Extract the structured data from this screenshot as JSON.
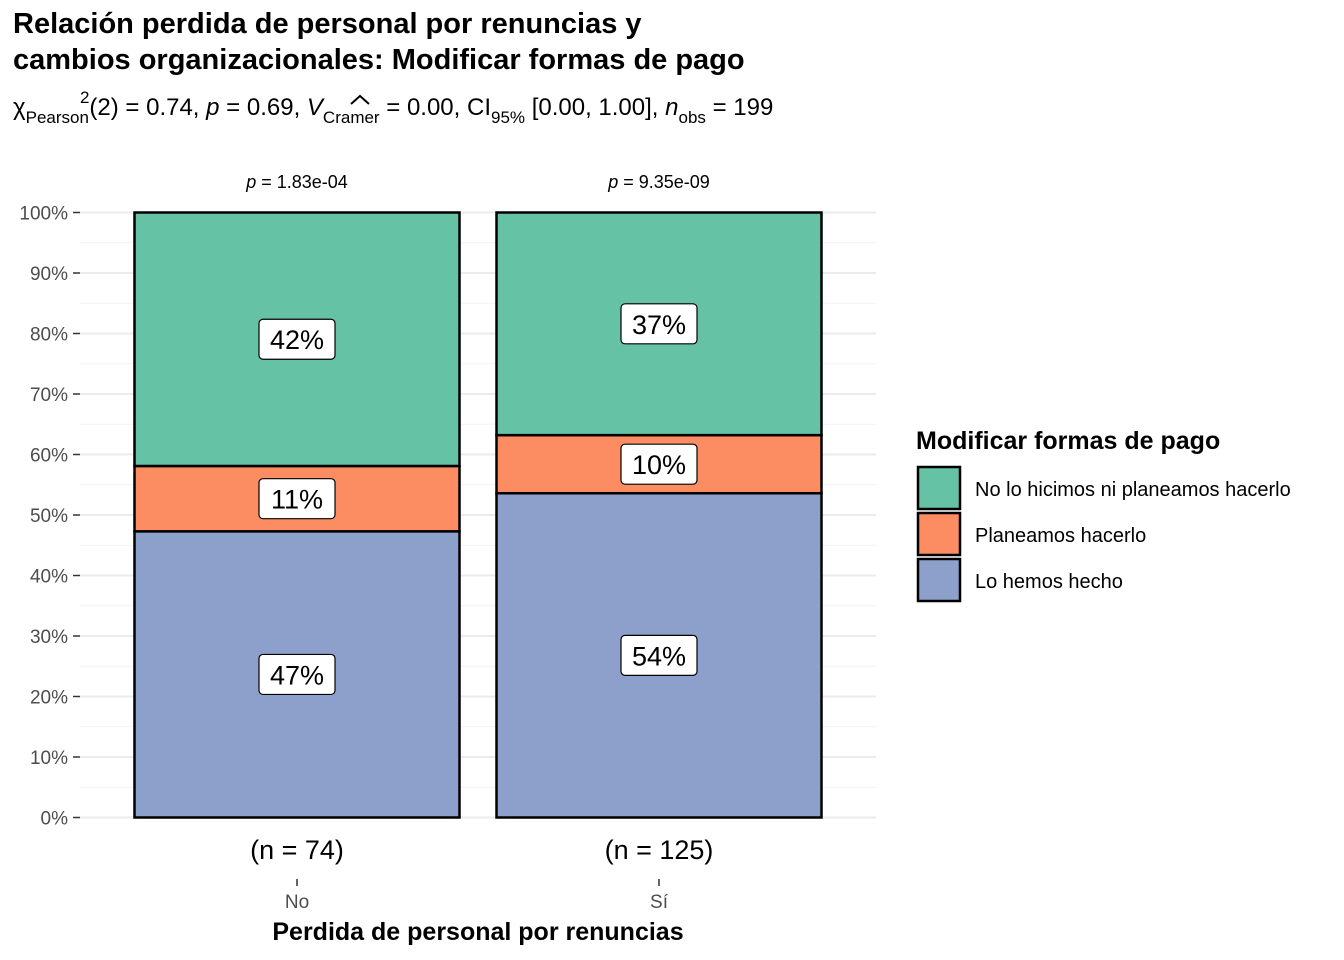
{
  "chart_data": {
    "type": "bar",
    "stacked": "percent",
    "title_line1": "Relación perdida de personal por renuncias y",
    "title_line2": "cambios organizacionales: Modificar formas de pago",
    "subtitle": {
      "chi": "χ",
      "chi_sub": "Pearson",
      "chi_sup": "2",
      "df": "(2) = 0.74, ",
      "p": "p",
      "p_val": " = 0.69, ",
      "v": "V",
      "v_sub": "Cramer",
      "v_val": " = 0.00, CI",
      "ci_sub": "95%",
      "ci_val": " [0.00, 1.00], ",
      "n": "n",
      "n_sub": "obs",
      "n_val": " = 199"
    },
    "xlabel": "Perdida de personal por renuncias",
    "ylabel": "",
    "ylim": [
      0,
      100
    ],
    "yticks": [
      "0%",
      "10%",
      "20%",
      "30%",
      "40%",
      "50%",
      "60%",
      "70%",
      "80%",
      "90%",
      "100%"
    ],
    "categories": [
      "No",
      "Sí"
    ],
    "category_counts": [
      "(n = 74)",
      "(n = 125)"
    ],
    "category_pvalues": [
      "p = 1.83e-04",
      "p = 9.35e-09"
    ],
    "legend_title": "Modificar formas de pago",
    "legend_position": "right",
    "grid": true,
    "series": [
      {
        "name": "Lo hemos hecho",
        "color": "#8DA0CB",
        "values": [
          47.3,
          53.6
        ],
        "labels": [
          "47%",
          "54%"
        ]
      },
      {
        "name": "Planeamos hacerlo",
        "color": "#FC8D62",
        "values": [
          10.8,
          9.6
        ],
        "labels": [
          "11%",
          "10%"
        ]
      },
      {
        "name": "No lo hicimos ni planeamos hacerlo",
        "color": "#66C2A5",
        "values": [
          41.9,
          36.8
        ],
        "labels": [
          "42%",
          "37%"
        ]
      }
    ],
    "legend_order": [
      "No lo hicimos ni planeamos hacerlo",
      "Planeamos hacerlo",
      "Lo hemos hecho"
    ]
  }
}
